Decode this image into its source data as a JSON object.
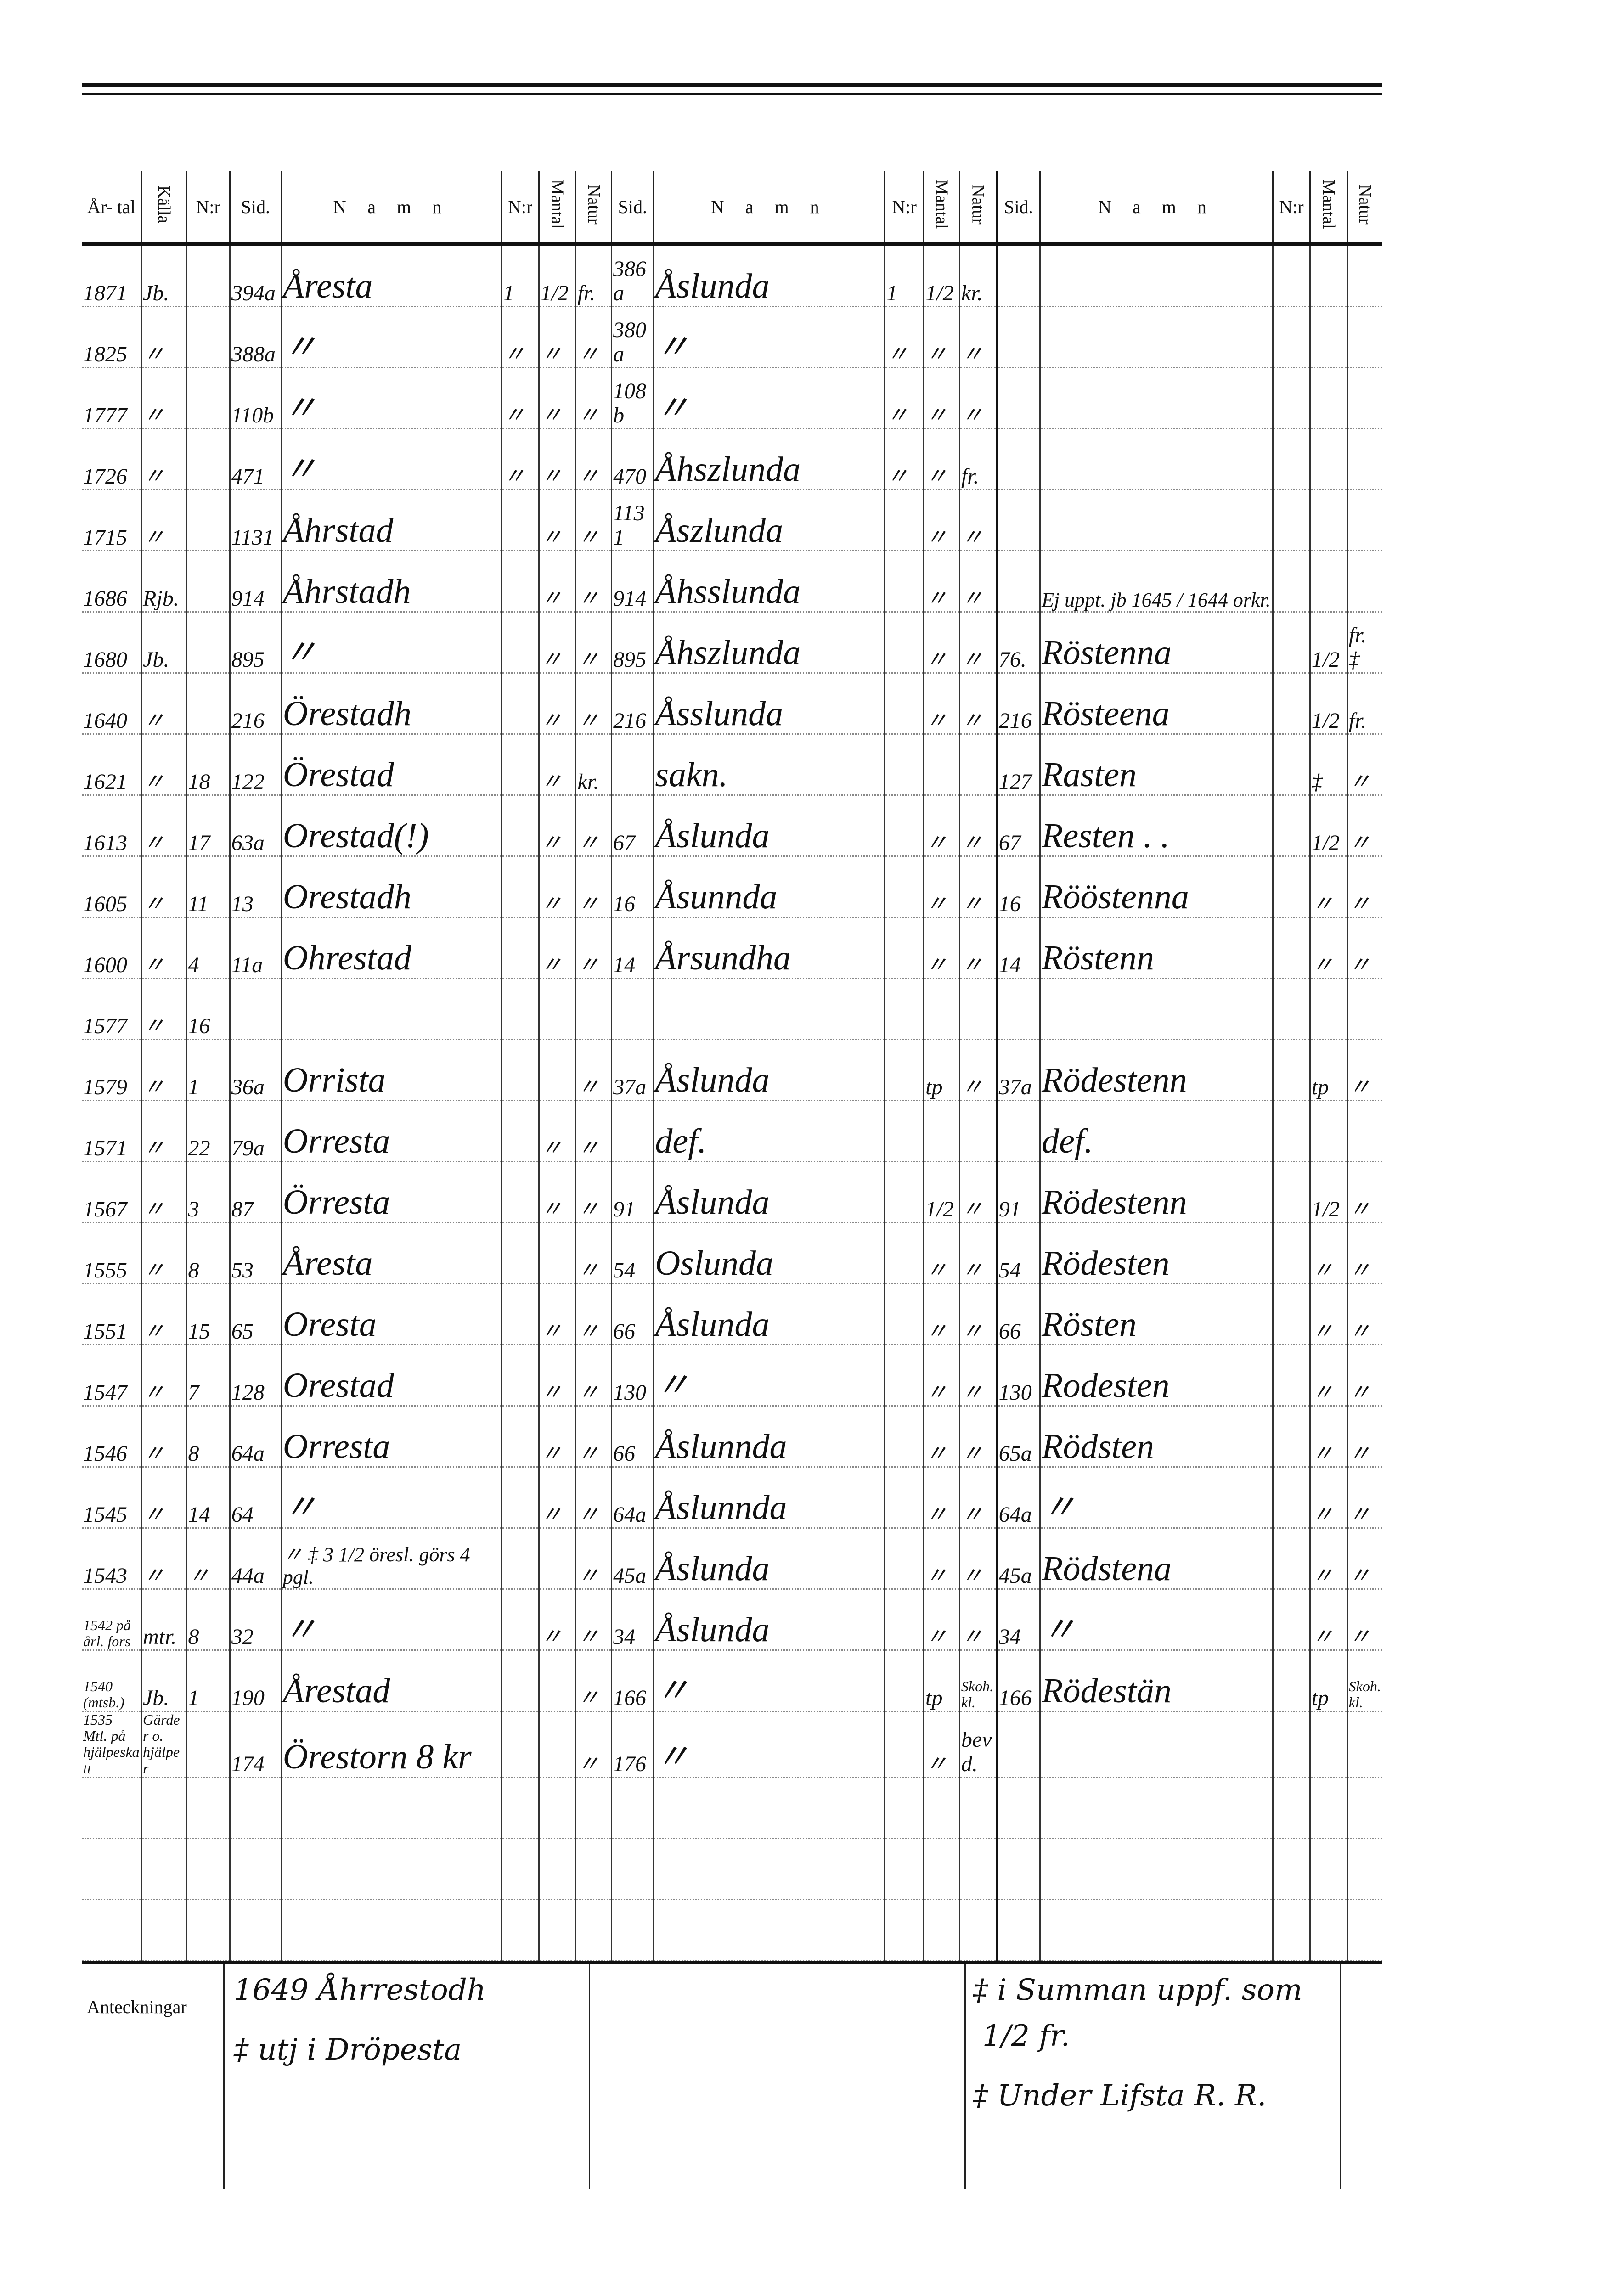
{
  "header": {
    "artal": "År- tal",
    "kalla": "Källa",
    "nr": "N:r",
    "sid": "Sid.",
    "namn": "N a m n",
    "mantal": "Mantal",
    "natur": "Natur"
  },
  "rows": [
    [
      "1871",
      "Jb.",
      "",
      "394a",
      "Åresta",
      "1",
      "1/2",
      "fr.",
      "386a",
      "Åslunda",
      "1",
      "1/2",
      "kr.",
      "",
      "",
      "",
      "",
      ""
    ],
    [
      "1825",
      "〃",
      "",
      "388a",
      "〃",
      "〃",
      "〃",
      "〃",
      "380a",
      "〃",
      "〃",
      "〃",
      "〃",
      "",
      "",
      "",
      "",
      ""
    ],
    [
      "1777",
      "〃",
      "",
      "110b",
      "〃",
      "〃",
      "〃",
      "〃",
      "108b",
      "〃",
      "〃",
      "〃",
      "〃",
      "",
      "",
      "",
      "",
      ""
    ],
    [
      "1726",
      "〃",
      "",
      "471",
      "〃",
      "〃",
      "〃",
      "〃",
      "470",
      "Åhszlunda",
      "〃",
      "〃",
      "fr.",
      "",
      "",
      "",
      "",
      ""
    ],
    [
      "1715",
      "〃",
      "",
      "1131",
      "Åhrstad",
      "",
      "〃",
      "〃",
      "1131",
      "Åszlunda",
      "",
      "〃",
      "〃",
      "",
      "",
      "",
      "",
      ""
    ],
    [
      "1686",
      "Rjb.",
      "",
      "914",
      "Åhrstadh",
      "",
      "〃",
      "〃",
      "914",
      "Åhsslunda",
      "",
      "〃",
      "〃",
      "",
      "Ej uppt. jb 1645 / 1644 orkr.",
      "",
      "",
      ""
    ],
    [
      "1680",
      "Jb.",
      "",
      "895",
      "〃",
      "",
      "〃",
      "〃",
      "895",
      "Åhszlunda",
      "",
      "〃",
      "〃",
      "76.",
      "Röstenna",
      "",
      "1/2",
      "fr. ‡"
    ],
    [
      "1640",
      "〃",
      "",
      "216",
      "Örestadh",
      "",
      "〃",
      "〃",
      "216",
      "Åsslunda",
      "",
      "〃",
      "〃",
      "216",
      "Rösteena",
      "",
      "1/2",
      "fr."
    ],
    [
      "1621",
      "〃",
      "18",
      "122",
      "Örestad",
      "",
      "〃",
      "kr.",
      "",
      "sakn.",
      "",
      "",
      "",
      "127",
      "Rasten",
      "",
      "‡",
      "〃"
    ],
    [
      "1613",
      "〃",
      "17",
      "63a",
      "Orestad(!)",
      "",
      "〃",
      "〃",
      "67",
      "Åslunda",
      "",
      "〃",
      "〃",
      "67",
      "Resten . .",
      "",
      "1/2",
      "〃"
    ],
    [
      "1605",
      "〃",
      "11",
      "13",
      "Orestadh",
      "",
      "〃",
      "〃",
      "16",
      "Åsunnda",
      "",
      "〃",
      "〃",
      "16",
      "Rööstenna",
      "",
      "〃",
      "〃"
    ],
    [
      "1600",
      "〃",
      "4",
      "11a",
      "Ohrestad",
      "",
      "〃",
      "〃",
      "14",
      "Årsundha",
      "",
      "〃",
      "〃",
      "14",
      "Röstenn",
      "",
      "〃",
      "〃"
    ],
    [
      "1577",
      "〃",
      "16",
      "",
      "",
      "",
      "",
      "",
      "",
      "",
      "",
      "",
      "",
      "",
      "",
      "",
      "",
      ""
    ],
    [
      "1579",
      "〃",
      "1",
      "36a",
      "Orrista",
      "",
      "",
      "〃",
      "37a",
      "Åslunda",
      "",
      "tp",
      "〃",
      "37a",
      "Rödestenn",
      "",
      "tp",
      "〃"
    ],
    [
      "1571",
      "〃",
      "22",
      "79a",
      "Orresta",
      "",
      "〃",
      "〃",
      "",
      "def.",
      "",
      "",
      "",
      "",
      "def.",
      "",
      "",
      ""
    ],
    [
      "1567",
      "〃",
      "3",
      "87",
      "Örresta",
      "",
      "〃",
      "〃",
      "91",
      "Åslunda",
      "",
      "1/2",
      "〃",
      "91",
      "Rödestenn",
      "",
      "1/2",
      "〃"
    ],
    [
      "1555",
      "〃",
      "8",
      "53",
      "Åresta",
      "",
      "",
      "〃",
      "54",
      "Oslunda",
      "",
      "〃",
      "〃",
      "54",
      "Rödesten",
      "",
      "〃",
      "〃"
    ],
    [
      "1551",
      "〃",
      "15",
      "65",
      "Oresta",
      "",
      "〃",
      "〃",
      "66",
      "Åslunda",
      "",
      "〃",
      "〃",
      "66",
      "Rösten",
      "",
      "〃",
      "〃"
    ],
    [
      "1547",
      "〃",
      "7",
      "128",
      "Orestad",
      "",
      "〃",
      "〃",
      "130",
      "〃",
      "",
      "〃",
      "〃",
      "130",
      "Rodesten",
      "",
      "〃",
      "〃"
    ],
    [
      "1546",
      "〃",
      "8",
      "64a",
      "Orresta",
      "",
      "〃",
      "〃",
      "66",
      "Åslunnda",
      "",
      "〃",
      "〃",
      "65a",
      "Rödsten",
      "",
      "〃",
      "〃"
    ],
    [
      "1545",
      "〃",
      "14",
      "64",
      "〃",
      "",
      "〃",
      "〃",
      "64a",
      "Åslunnda",
      "",
      "〃",
      "〃",
      "64a",
      "〃",
      "",
      "〃",
      "〃"
    ],
    [
      "1543",
      "〃",
      "〃",
      "44a",
      "〃 ‡  3 1/2 öresl. görs 4 pgl.",
      "",
      "",
      "〃",
      "45a",
      "Åslunda",
      "",
      "〃",
      "〃",
      "45a",
      "Rödstena",
      "",
      "〃",
      "〃"
    ],
    [
      "1542 på årl. fors",
      "mtr.",
      "8",
      "32",
      "〃",
      "",
      "〃",
      "〃",
      "34",
      "Åslunda",
      "",
      "〃",
      "〃",
      "34",
      "〃",
      "",
      "〃",
      "〃"
    ],
    [
      "1540 (mtsb.)",
      "Jb.",
      "1",
      "190",
      "Årestad",
      "",
      "",
      "〃",
      "166",
      "〃",
      "",
      "tp",
      "Skoh. kl.",
      "166",
      "Rödestän",
      "",
      "tp",
      "Skoh. kl."
    ],
    [
      "1535 Mtl. på hjälpeskatt",
      "Gärder o. hjälper",
      "",
      "174",
      "Örestorn 8 kr",
      "",
      "",
      "〃",
      "176",
      "〃",
      "",
      "〃",
      "bevd.",
      "",
      "",
      "",
      "",
      ""
    ],
    [
      "",
      "",
      "",
      "",
      "",
      "",
      "",
      "",
      "",
      "",
      "",
      "",
      "",
      "",
      "",
      "",
      "",
      ""
    ],
    [
      "",
      "",
      "",
      "",
      "",
      "",
      "",
      "",
      "",
      "",
      "",
      "",
      "",
      "",
      "",
      "",
      "",
      ""
    ],
    [
      "",
      "",
      "",
      "",
      "",
      "",
      "",
      "",
      "",
      "",
      "",
      "",
      "",
      "",
      "",
      "",
      "",
      ""
    ]
  ],
  "notes": {
    "label": "Anteckningar",
    "left": [
      "1649 Åhrrestodh",
      "‡ utj i Dröpesta"
    ],
    "right": [
      "‡ i Summan uppf. som",
      "1/2 fr.",
      "‡ Under Lifsta R. R."
    ]
  }
}
